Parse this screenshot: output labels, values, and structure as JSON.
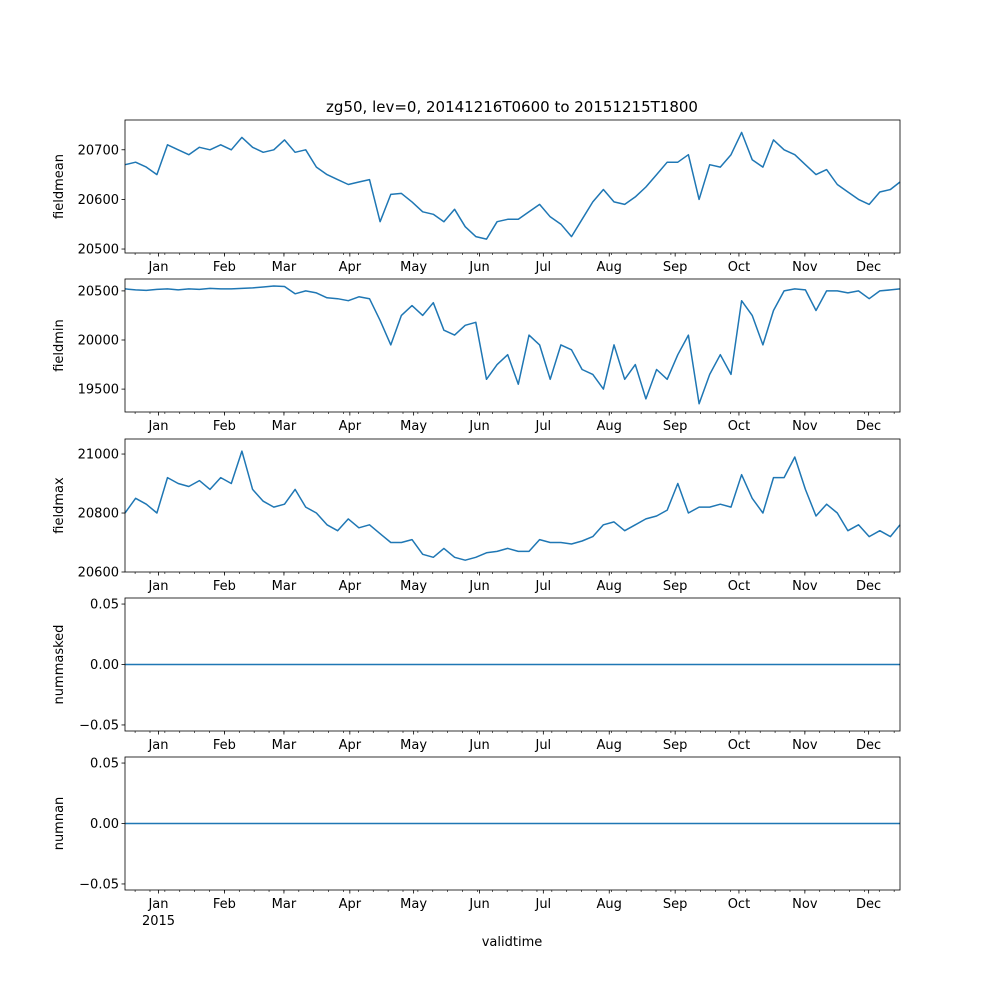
{
  "chart_data": {
    "type": "line",
    "title": "zg50, lev=0, 20141216T0600 to 20151215T1800",
    "xlabel": "validtime",
    "xrange": [
      "2014-12-16T06:00",
      "2015-12-15T18:00"
    ],
    "x_tick_labels": [
      "Jan",
      "Feb",
      "Mar",
      "Apr",
      "May",
      "Jun",
      "Jul",
      "Aug",
      "Sep",
      "Oct",
      "Nov",
      "Dec"
    ],
    "x_tick_dates": [
      "2015-01-01",
      "2015-02-01",
      "2015-03-01",
      "2015-04-01",
      "2015-05-01",
      "2015-06-01",
      "2015-07-01",
      "2015-08-01",
      "2015-09-01",
      "2015-10-01",
      "2015-11-01",
      "2015-12-01"
    ],
    "year_label": "2015",
    "line_color": "#1f77b4",
    "x_day_offsets": [
      0,
      5,
      10,
      15,
      20,
      25,
      30,
      35,
      40,
      45,
      50,
      55,
      60,
      65,
      70,
      75,
      80,
      85,
      90,
      95,
      100,
      105,
      110,
      115,
      120,
      125,
      130,
      135,
      140,
      145,
      150,
      155,
      160,
      165,
      170,
      175,
      180,
      185,
      190,
      195,
      200,
      205,
      210,
      215,
      220,
      225,
      230,
      235,
      240,
      245,
      250,
      255,
      260,
      265,
      270,
      275,
      280,
      285,
      290,
      295,
      300,
      305,
      310,
      315,
      320,
      325,
      330,
      335,
      340,
      345,
      350,
      355,
      360,
      364.5
    ],
    "x_day_offsets_origin": "2014-12-16T06:00",
    "panels": [
      {
        "ylabel": "fieldmean",
        "ylim": [
          20492,
          20760
        ],
        "yticks": [
          20500,
          20600,
          20700
        ],
        "ytick_labels": [
          "20500",
          "20600",
          "20700"
        ],
        "values": [
          20670,
          20675,
          20665,
          20650,
          20710,
          20700,
          20690,
          20705,
          20700,
          20710,
          20700,
          20725,
          20705,
          20695,
          20700,
          20720,
          20695,
          20700,
          20665,
          20650,
          20640,
          20630,
          20635,
          20640,
          20555,
          20610,
          20612,
          20595,
          20575,
          20570,
          20555,
          20580,
          20545,
          20525,
          20520,
          20555,
          20560,
          20560,
          20575,
          20590,
          20565,
          20550,
          20525,
          20560,
          20595,
          20620,
          20595,
          20590,
          20605,
          20625,
          20650,
          20675,
          20675,
          20690,
          20600,
          20670,
          20665,
          20690,
          20735,
          20680,
          20665,
          20720,
          20700,
          20690,
          20670,
          20650,
          20660,
          20630,
          20615,
          20600,
          20590,
          20615,
          20620,
          20635
        ]
      },
      {
        "ylabel": "fieldmin",
        "ylim": [
          19267,
          20621
        ],
        "yticks": [
          19500,
          20000,
          20500
        ],
        "ytick_labels": [
          "19500",
          "20000",
          "20500"
        ],
        "values": [
          20520,
          20510,
          20505,
          20515,
          20520,
          20510,
          20520,
          20515,
          20525,
          20520,
          20520,
          20525,
          20530,
          20540,
          20550,
          20545,
          20470,
          20500,
          20480,
          20430,
          20420,
          20400,
          20440,
          20420,
          20200,
          19950,
          20250,
          20350,
          20250,
          20380,
          20100,
          20050,
          20150,
          20180,
          19600,
          19750,
          19850,
          19550,
          20050,
          19950,
          19600,
          19950,
          19900,
          19700,
          19650,
          19500,
          19950,
          19600,
          19750,
          19400,
          19700,
          19600,
          19850,
          20050,
          19350,
          19650,
          19850,
          19650,
          20400,
          20250,
          19950,
          20300,
          20500,
          20520,
          20510,
          20300,
          20500,
          20500,
          20480,
          20500,
          20420,
          20500,
          20510,
          20520
        ]
      },
      {
        "ylabel": "fieldmax",
        "ylim": [
          20600,
          21051
        ],
        "yticks": [
          20600,
          20800,
          21000
        ],
        "ytick_labels": [
          "20600",
          "20800",
          "21000"
        ],
        "values": [
          20800,
          20850,
          20830,
          20800,
          20920,
          20900,
          20890,
          20910,
          20880,
          20920,
          20900,
          21010,
          20880,
          20840,
          20820,
          20830,
          20880,
          20820,
          20800,
          20760,
          20740,
          20780,
          20750,
          20760,
          20730,
          20700,
          20700,
          20710,
          20660,
          20650,
          20680,
          20650,
          20640,
          20650,
          20665,
          20670,
          20680,
          20670,
          20670,
          20710,
          20700,
          20700,
          20695,
          20705,
          20720,
          20760,
          20770,
          20740,
          20760,
          20780,
          20790,
          20810,
          20900,
          20800,
          20820,
          20820,
          20830,
          20820,
          20930,
          20850,
          20800,
          20920,
          20920,
          20990,
          20880,
          20790,
          20830,
          20800,
          20740,
          20760,
          20720,
          20740,
          20720,
          20760
        ]
      },
      {
        "ylabel": "nummasked",
        "ylim": [
          -0.055,
          0.055
        ],
        "yticks": [
          -0.05,
          0.0,
          0.05
        ],
        "ytick_labels": [
          "−0.05",
          "0.00",
          "0.05"
        ],
        "constant_value": 0
      },
      {
        "ylabel": "numnan",
        "ylim": [
          -0.055,
          0.055
        ],
        "yticks": [
          -0.05,
          0.0,
          0.05
        ],
        "ytick_labels": [
          "−0.05",
          "0.00",
          "0.05"
        ],
        "constant_value": 0
      }
    ]
  }
}
